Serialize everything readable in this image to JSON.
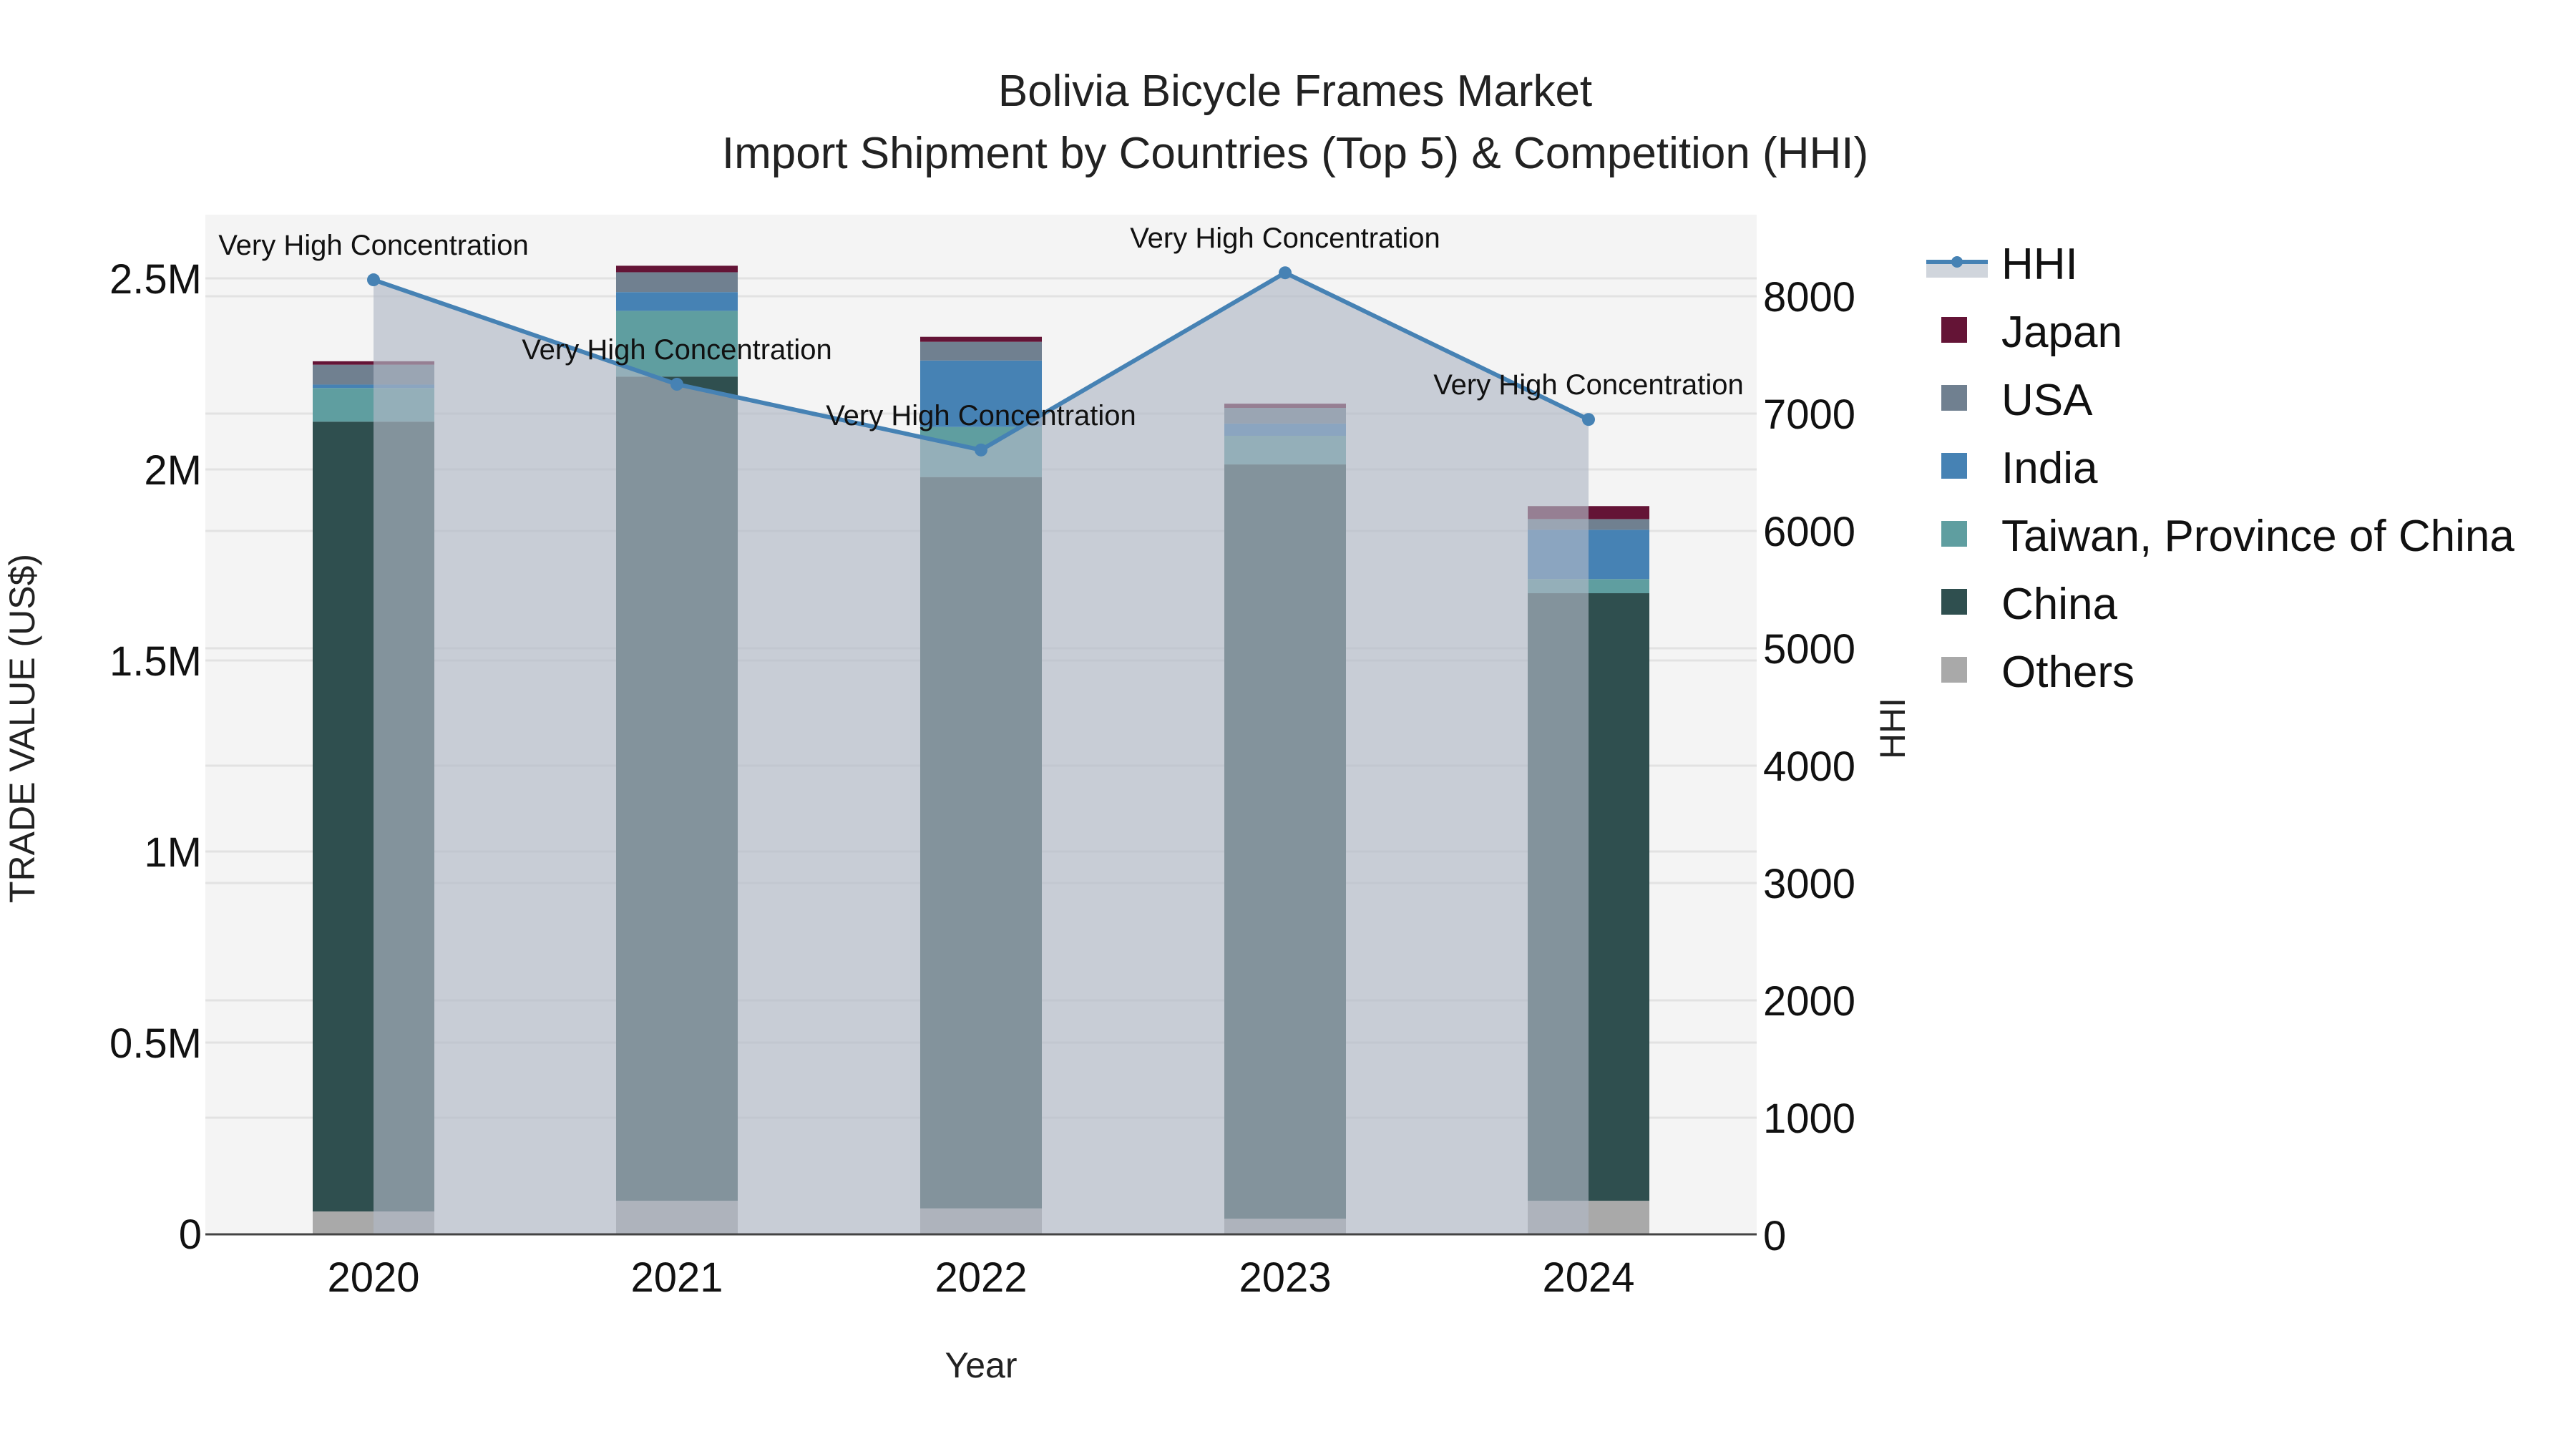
{
  "chart_data": {
    "type": "bar",
    "stacked": true,
    "title": "Bolivia Bicycle Frames Market",
    "subtitle": "Import Shipment by Countries (Top 5) & Competition (HHI)",
    "xlabel": "Year",
    "ylabel": "TRADE VALUE (US$)",
    "y2label": "HHI",
    "categories": [
      "2020",
      "2021",
      "2022",
      "2023",
      "2024"
    ],
    "ylim": [
      0,
      2670000
    ],
    "y_ticks": [
      {
        "value": 0,
        "label": "0"
      },
      {
        "value": 500000,
        "label": "0.5M"
      },
      {
        "value": 1000000,
        "label": "1M"
      },
      {
        "value": 1500000,
        "label": "1.5M"
      },
      {
        "value": 2000000,
        "label": "2M"
      },
      {
        "value": 2500000,
        "label": "2.5M"
      }
    ],
    "y2lim": [
      0,
      8700
    ],
    "y2_ticks": [
      0,
      1000,
      2000,
      3000,
      4000,
      5000,
      6000,
      7000,
      8000
    ],
    "series": [
      {
        "name": "Others",
        "color": "#A9A9A9",
        "values": [
          58000,
          86000,
          66000,
          39000,
          86000
        ]
      },
      {
        "name": "China",
        "color": "#2F4F4F",
        "values": [
          2067000,
          2157000,
          1914000,
          1974000,
          1590000
        ]
      },
      {
        "name": "Taiwan, Province of China",
        "color": "#5F9EA0",
        "values": [
          88000,
          172000,
          131000,
          75000,
          37000
        ]
      },
      {
        "name": "India",
        "color": "#4682B4",
        "values": [
          9000,
          49000,
          174000,
          32000,
          129000
        ]
      },
      {
        "name": "USA",
        "color": "#708090",
        "values": [
          52000,
          52000,
          49000,
          41000,
          28000
        ]
      },
      {
        "name": "Japan",
        "color": "#641436",
        "values": [
          9000,
          17000,
          13000,
          11000,
          34000
        ]
      }
    ],
    "line_series": {
      "name": "HHI",
      "axis": "y2",
      "color": "#4682B4",
      "fill": "rgba(176,184,198,0.65)",
      "values": [
        8140,
        7250,
        6690,
        8200,
        6950
      ],
      "annotations": [
        "Very High Concentration",
        "Very High Concentration",
        "Very High Concentration",
        "Very High Concentration",
        "Very High Concentration"
      ]
    },
    "legend": {
      "position": "right",
      "entries": [
        "HHI",
        "Japan",
        "USA",
        "India",
        "Taiwan, Province of China",
        "China",
        "Others"
      ]
    },
    "grid": true,
    "plot_bg": "#F4F4F4"
  }
}
